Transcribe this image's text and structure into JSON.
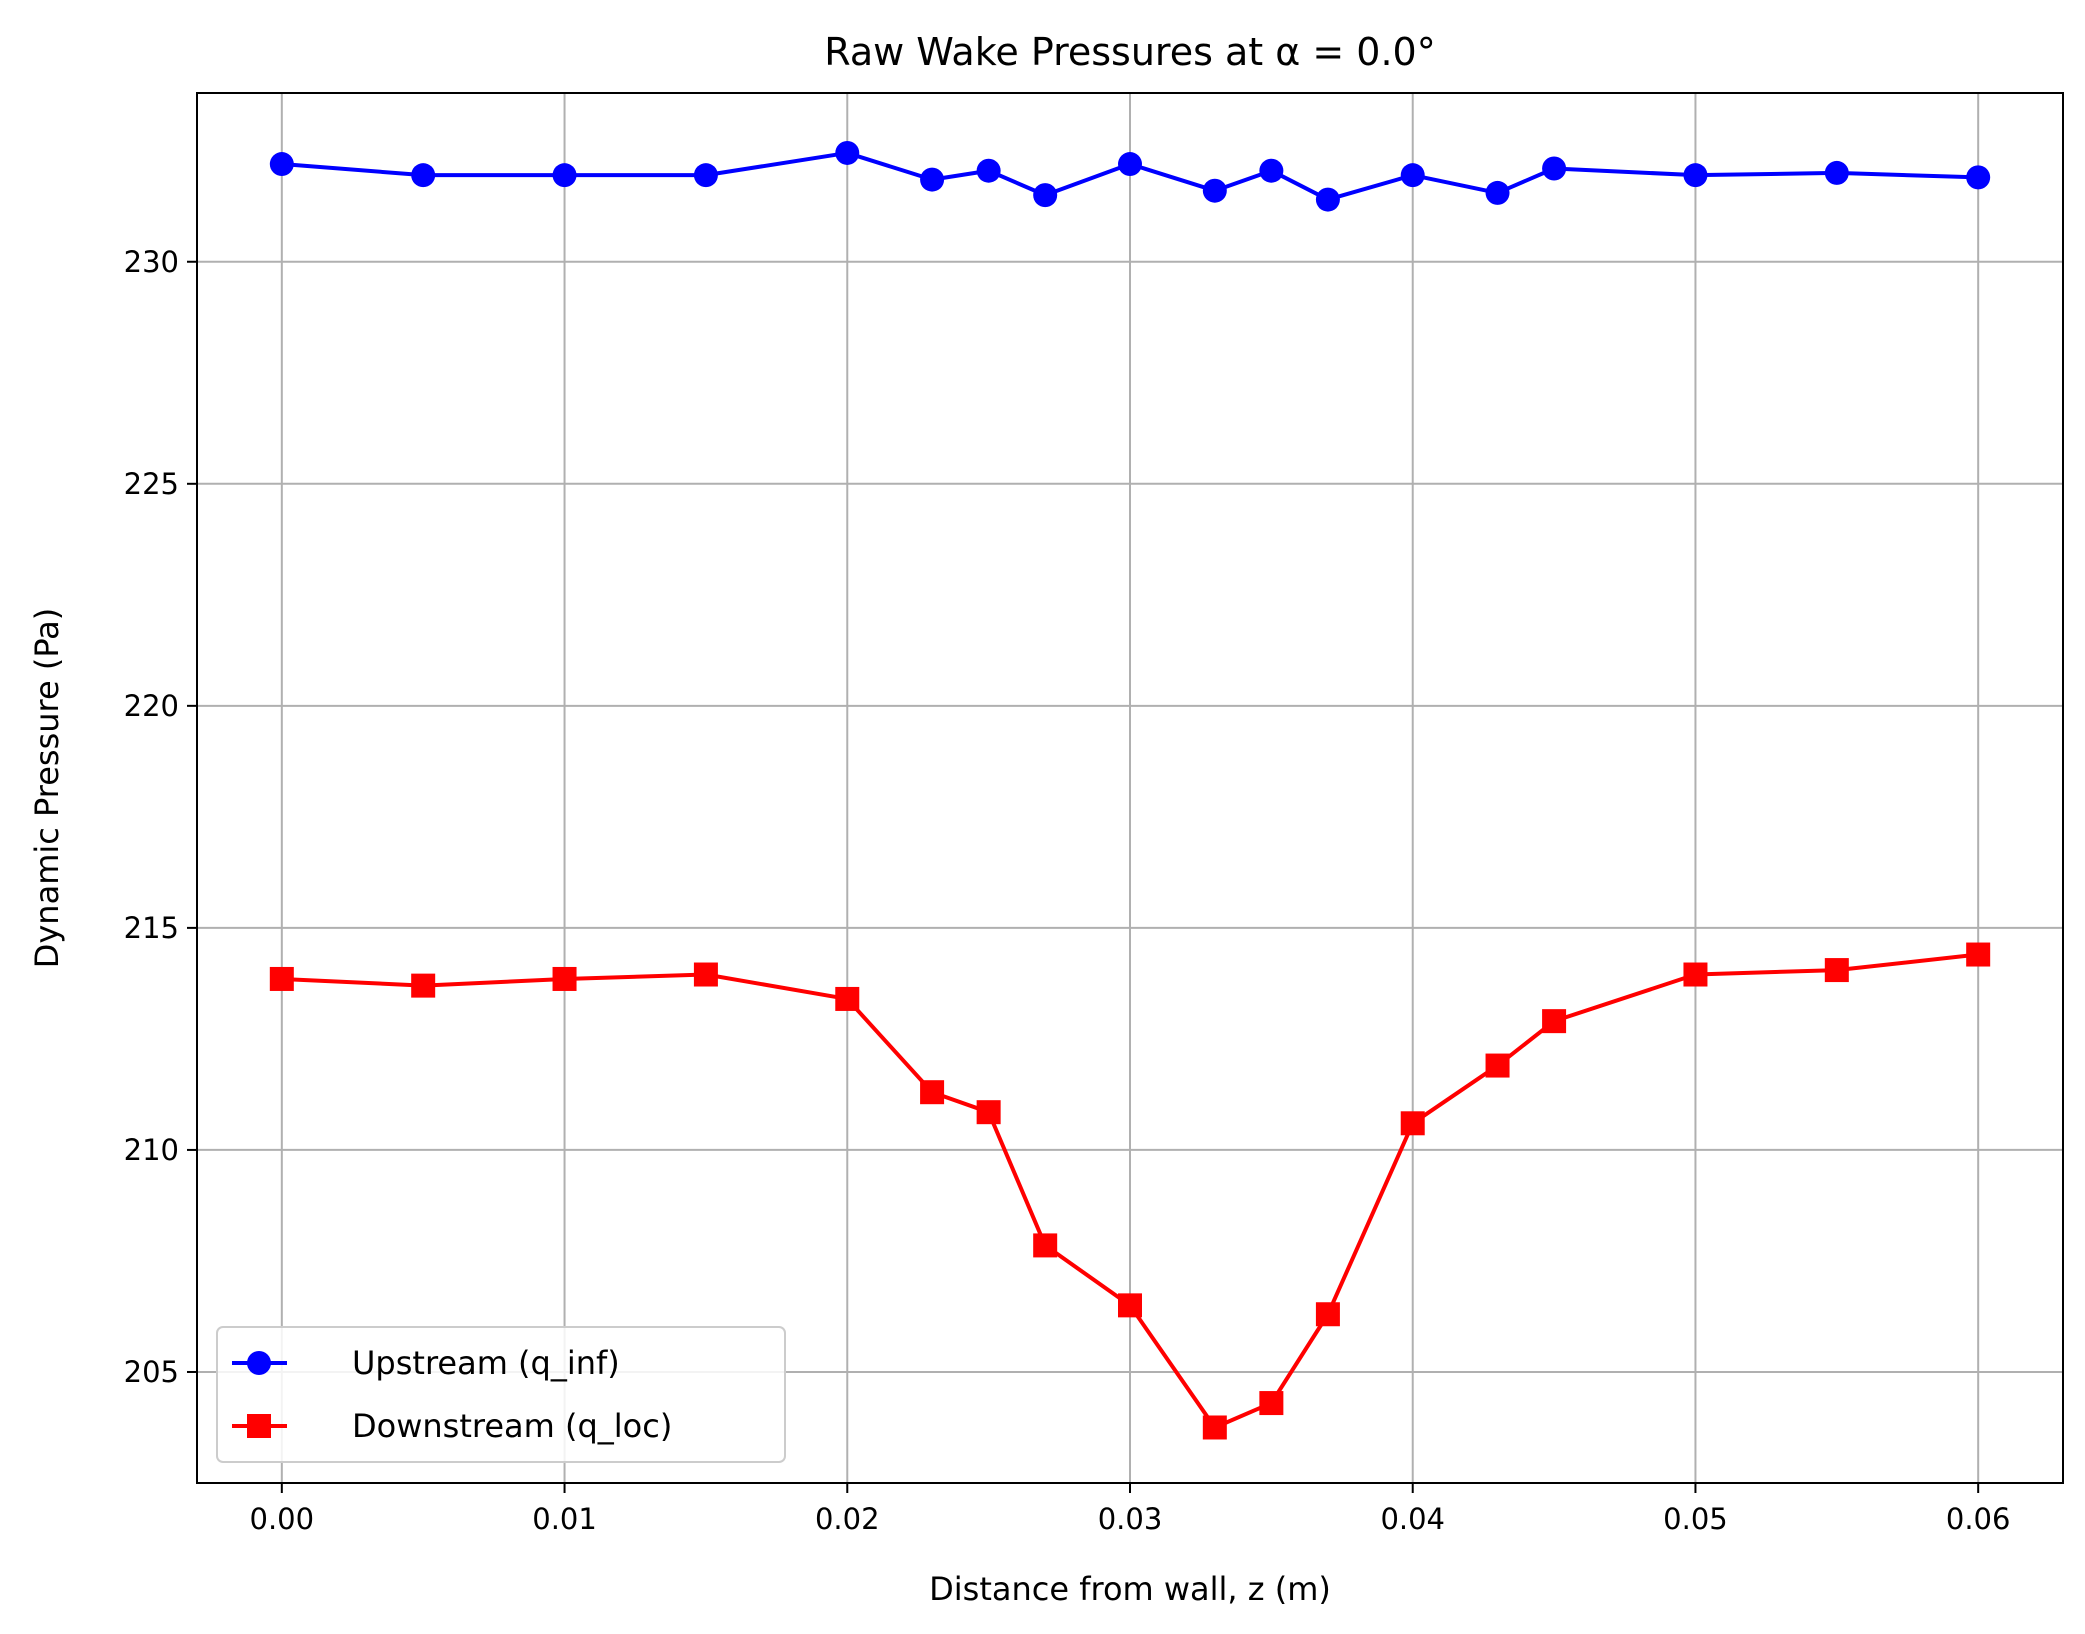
{
  "chart_data": {
    "type": "line",
    "title": "Raw Wake Pressures at α = 0.0°",
    "xlabel": "Distance from wall, z (m)",
    "ylabel": "Dynamic Pressure (Pa)",
    "xlim": [
      -0.003,
      0.063
    ],
    "ylim": [
      202.5,
      233.8
    ],
    "xticks": [
      0.0,
      0.01,
      0.02,
      0.03,
      0.04,
      0.05,
      0.06
    ],
    "xtick_labels": [
      "0.00",
      "0.01",
      "0.02",
      "0.03",
      "0.04",
      "0.05",
      "0.06"
    ],
    "yticks": [
      205,
      210,
      215,
      220,
      225,
      230
    ],
    "ytick_labels": [
      "205",
      "210",
      "215",
      "220",
      "225",
      "230"
    ],
    "grid": true,
    "legend_position": "lower-left",
    "x": [
      0.0,
      0.005,
      0.01,
      0.015,
      0.02,
      0.023,
      0.025,
      0.027,
      0.03,
      0.033,
      0.035,
      0.037,
      0.04,
      0.043,
      0.045,
      0.05,
      0.055,
      0.06
    ],
    "series": [
      {
        "name": "Upstream (q_inf)",
        "color": "#0000ff",
        "marker": "circle",
        "values": [
          232.2,
          231.95,
          231.95,
          231.95,
          232.45,
          231.85,
          232.05,
          231.5,
          232.2,
          231.6,
          232.05,
          231.4,
          231.95,
          231.55,
          232.1,
          231.95,
          232.0,
          231.9
        ]
      },
      {
        "name": "Downstream (q_loc)",
        "color": "#ff0000",
        "marker": "square",
        "values": [
          213.85,
          213.7,
          213.85,
          213.95,
          213.4,
          211.3,
          210.85,
          207.85,
          206.5,
          203.75,
          204.3,
          206.3,
          210.6,
          211.9,
          212.9,
          213.95,
          214.05,
          214.4
        ]
      }
    ]
  }
}
